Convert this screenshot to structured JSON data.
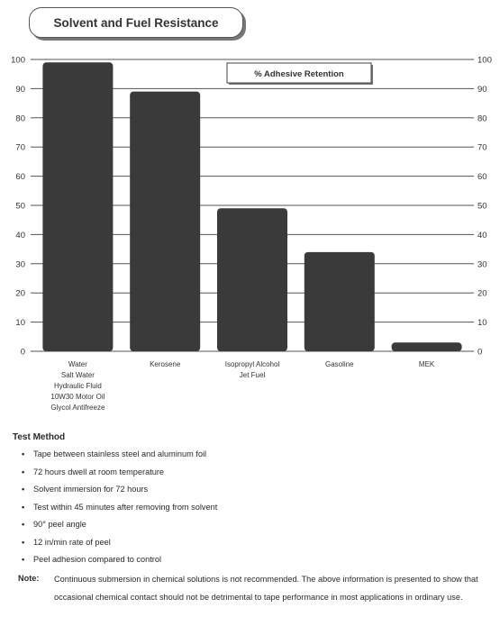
{
  "chart_data": {
    "type": "bar",
    "title": "Solvent and Fuel Resistance",
    "legend": "% Adhesive Retention",
    "categories": [
      [
        "Water",
        "Salt Water",
        "Hydraulic Fluid",
        "10W30 Motor Oil",
        "Glycol Antifreeze"
      ],
      [
        "Kerosene"
      ],
      [
        "Isopropyl Alcohol",
        "Jet Fuel"
      ],
      [
        "Gasoline"
      ],
      [
        "MEK"
      ]
    ],
    "values": [
      99,
      89,
      49,
      34,
      3
    ],
    "yticks": [
      "0",
      "10",
      "20",
      "30",
      "40",
      "50",
      "60",
      "70",
      "80",
      "90",
      "100"
    ],
    "ylim": [
      0,
      100
    ],
    "grid": true,
    "bar_color": "#3a3a3a"
  },
  "test_method": {
    "heading": "Test Method",
    "items": [
      "Tape between stainless steel and aluminum foil",
      "72 hours dwell at room temperature",
      "Solvent immersion for 72 hours",
      "Test within 45 minutes after removing from solvent",
      "90° peel angle",
      "12 in/min rate of peel",
      "Peel adhesion compared to control"
    ]
  },
  "note": {
    "label": "Note:",
    "text": "Continuous submersion in chemical solutions is not recommended. The above information is presented to show that occasional chemical contact should not be detrimental to tape performance in most applications in ordinary use."
  }
}
